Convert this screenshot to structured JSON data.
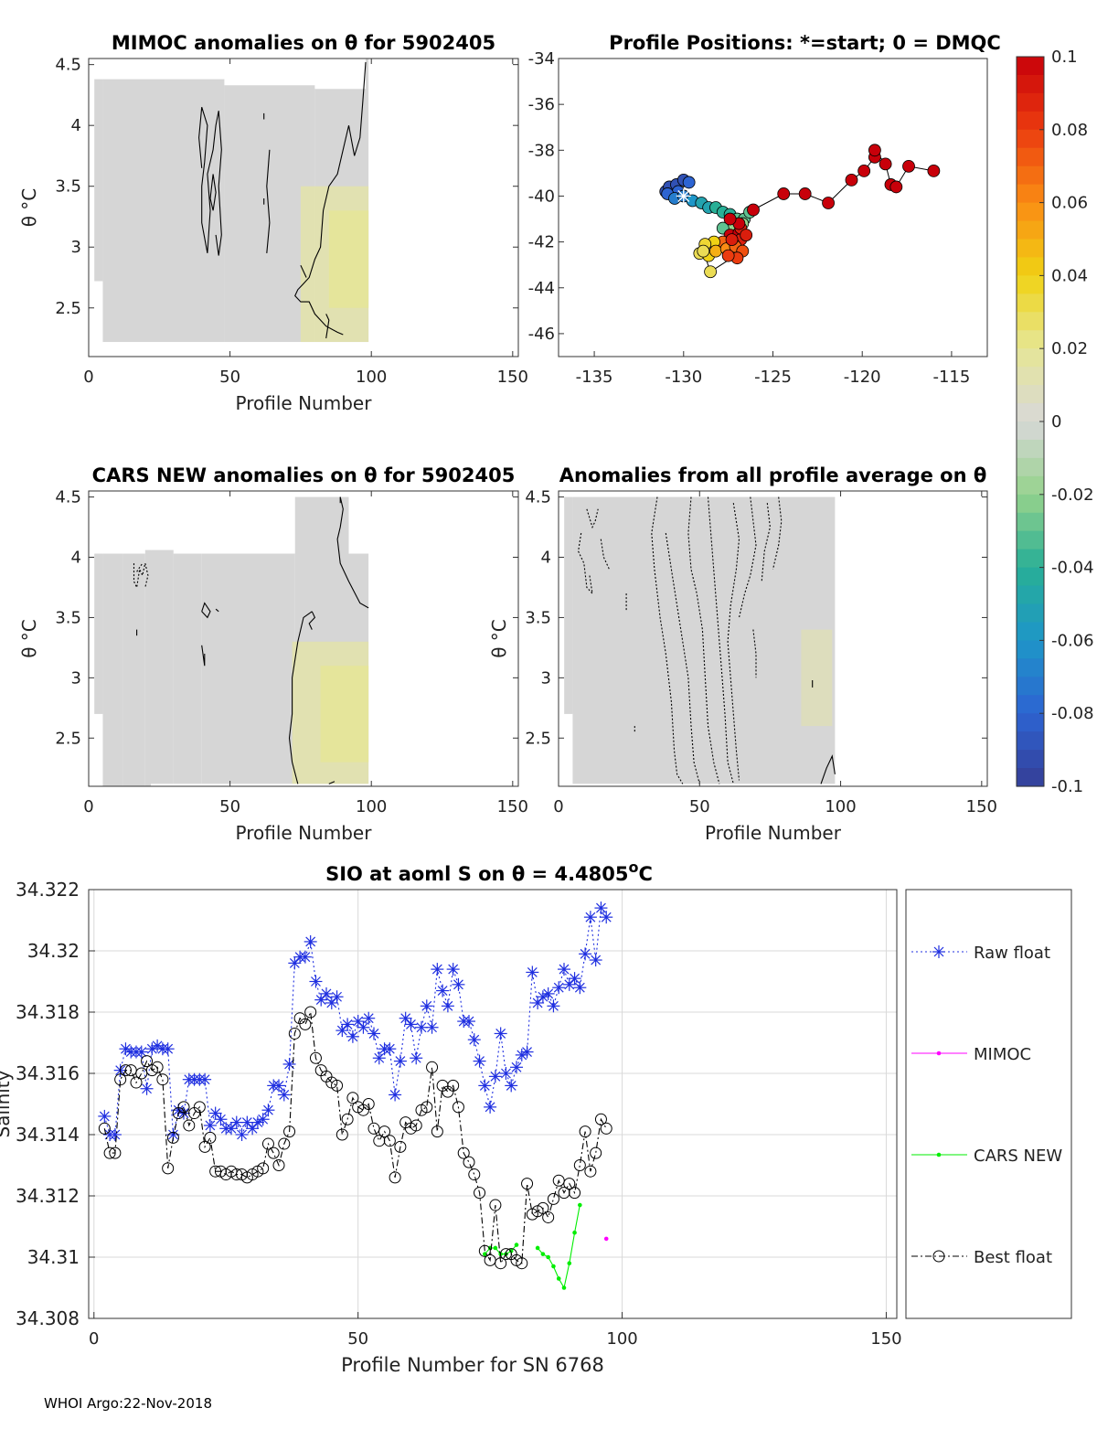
{
  "footer": "WHOI Argo:22-Nov-2018",
  "colors": {
    "raw": "#1f2fe0",
    "mimoc": "#ff00ff",
    "cars": "#00ee00",
    "best": "#000000",
    "grid": "#d9d9d9",
    "field": "#d6d6d6"
  },
  "chart_data": [
    {
      "type": "heatmap",
      "title": "MIMOC anomalies on θ  for 5902405",
      "xlabel": "Profile Number",
      "ylabel": "θ °C",
      "xlim": [
        0,
        152
      ],
      "ylim": [
        2.1,
        4.55
      ],
      "xticks": [
        0,
        50,
        100,
        150
      ],
      "yticks": [
        2.5,
        3,
        3.5,
        4,
        4.5
      ]
    },
    {
      "type": "scatter",
      "title": "Profile Positions: *=start; 0 = DMQC",
      "xlim": [
        -137,
        -113
      ],
      "ylim": [
        -47,
        -34
      ],
      "xticks": [
        -135,
        -130,
        -125,
        -120,
        -115
      ],
      "yticks": [
        -34,
        -36,
        -38,
        -40,
        -42,
        -44,
        -46
      ],
      "points": [
        [
          -131.0,
          -39.8,
          -0.09
        ],
        [
          -130.8,
          -39.6,
          -0.09
        ],
        [
          -130.4,
          -39.5,
          -0.09
        ],
        [
          -130.0,
          -39.3,
          -0.09
        ],
        [
          -129.7,
          -39.4,
          -0.08
        ],
        [
          -130.3,
          -39.8,
          -0.08
        ],
        [
          -130.9,
          -39.9,
          -0.08
        ],
        [
          -130.5,
          -40.1,
          -0.07
        ],
        [
          -130.0,
          -40.0,
          -0.07
        ],
        [
          -129.5,
          -40.2,
          -0.06
        ],
        [
          -129.0,
          -40.3,
          -0.05
        ],
        [
          -128.6,
          -40.5,
          -0.05
        ],
        [
          -128.2,
          -40.5,
          -0.04
        ],
        [
          -127.8,
          -40.7,
          -0.04
        ],
        [
          -127.4,
          -40.8,
          -0.04
        ],
        [
          -127.0,
          -41.0,
          -0.03
        ],
        [
          -126.6,
          -41.0,
          -0.03
        ],
        [
          -126.3,
          -40.7,
          -0.03
        ],
        [
          -126.7,
          -41.2,
          -0.02
        ],
        [
          -127.2,
          -41.3,
          -0.02
        ],
        [
          -127.8,
          -41.4,
          -0.03
        ],
        [
          -127.4,
          -41.7,
          0.1
        ],
        [
          -126.9,
          -41.6,
          0.1
        ],
        [
          -126.8,
          -41.9,
          0.09
        ],
        [
          -127.2,
          -42.1,
          0.08
        ],
        [
          -127.8,
          -42.0,
          0.07
        ],
        [
          -128.3,
          -42.0,
          0.04
        ],
        [
          -128.8,
          -42.1,
          0.035
        ],
        [
          -129.1,
          -42.5,
          0.03
        ],
        [
          -128.6,
          -42.6,
          0.04
        ],
        [
          -128.2,
          -42.4,
          0.05
        ],
        [
          -127.6,
          -42.3,
          0.06
        ],
        [
          -127.1,
          -42.2,
          0.07
        ],
        [
          -126.7,
          -42.4,
          0.075
        ],
        [
          -127.0,
          -42.7,
          0.08
        ],
        [
          -127.5,
          -42.6,
          0.08
        ],
        [
          -127.3,
          -41.9,
          0.09
        ],
        [
          -126.8,
          -41.4,
          0.09
        ],
        [
          -126.5,
          -41.7,
          0.09
        ],
        [
          -126.9,
          -41.2,
          0.1
        ],
        [
          -127.4,
          -41.0,
          0.1
        ],
        [
          -126.1,
          -40.6,
          0.1
        ],
        [
          -124.4,
          -39.9,
          0.1
        ],
        [
          -123.2,
          -39.9,
          0.1
        ],
        [
          -121.9,
          -40.3,
          0.1
        ],
        [
          -120.6,
          -39.3,
          0.1
        ],
        [
          -119.9,
          -38.9,
          0.1
        ],
        [
          -119.3,
          -38.3,
          0.1
        ],
        [
          -119.3,
          -38.0,
          0.1
        ],
        [
          -118.7,
          -38.6,
          0.1
        ],
        [
          -118.4,
          -39.5,
          0.1
        ],
        [
          -118.1,
          -39.6,
          0.1
        ],
        [
          -117.4,
          -38.7,
          0.1
        ],
        [
          -116.0,
          -38.9,
          0.1
        ],
        [
          -128.5,
          -43.3,
          0.03
        ],
        [
          -128.9,
          -42.4,
          0.03
        ]
      ],
      "start": [
        -130.0,
        -40.0
      ]
    },
    {
      "type": "heatmap",
      "title": "CARS NEW anomalies on θ for 5902405",
      "xlabel": "Profile Number",
      "ylabel": "θ °C",
      "xlim": [
        0,
        152
      ],
      "ylim": [
        2.1,
        4.55
      ],
      "xticks": [
        0,
        50,
        100,
        150
      ],
      "yticks": [
        2.5,
        3,
        3.5,
        4,
        4.5
      ]
    },
    {
      "type": "heatmap",
      "title": "Anomalies from all profile average on θ",
      "xlabel": "Profile Number",
      "ylabel": "θ °C",
      "xlim": [
        0,
        152
      ],
      "ylim": [
        2.1,
        4.55
      ],
      "xticks": [
        0,
        50,
        100,
        150
      ],
      "yticks": [
        2.5,
        3,
        3.5,
        4,
        4.5
      ]
    },
    {
      "type": "line",
      "title": "SIO at aoml S on θ = 4.4805",
      "title_sup": "o",
      "title_unit": "C",
      "xlabel": "Profile Number for SN 6768",
      "ylabel": "Salinity",
      "xlim": [
        -1,
        152
      ],
      "ylim": [
        34.308,
        34.322
      ],
      "xticks": [
        0,
        50,
        100,
        150
      ],
      "yticks": [
        "34.308",
        "34.31",
        "34.312",
        "34.314",
        "34.316",
        "34.318",
        "34.32",
        "34.322"
      ],
      "legend": [
        "Raw float",
        "MIMOC",
        "CARS NEW",
        "Best float"
      ],
      "legend_position": "outside-right",
      "series": [
        {
          "name": "Raw float",
          "x": [
            2,
            3,
            4,
            5,
            6,
            7,
            8,
            9,
            10,
            11,
            12,
            13,
            14,
            15,
            16,
            17,
            18,
            19,
            20,
            21,
            22,
            23,
            24,
            25,
            26,
            27,
            28,
            29,
            30,
            31,
            32,
            33,
            34,
            35,
            36,
            37,
            38,
            39,
            40,
            41,
            42,
            43,
            44,
            45,
            46,
            47,
            48,
            49,
            50,
            51,
            52,
            53,
            54,
            55,
            56,
            57,
            58,
            59,
            60,
            61,
            62,
            63,
            64,
            65,
            66,
            67,
            68,
            69,
            70,
            71,
            72,
            73,
            74,
            75,
            76,
            77,
            78,
            79,
            80,
            81,
            82,
            83,
            84,
            85,
            86,
            87,
            88,
            89,
            90,
            91,
            92,
            93,
            94,
            95,
            96,
            97
          ],
          "y": [
            34.3146,
            34.314,
            34.314,
            34.3161,
            34.3168,
            34.3167,
            34.3167,
            34.3167,
            34.3155,
            34.3168,
            34.3169,
            34.3168,
            34.3168,
            34.314,
            34.3148,
            34.3147,
            34.3158,
            34.3158,
            34.3158,
            34.3158,
            34.3143,
            34.3147,
            34.3145,
            34.3142,
            34.3142,
            34.3144,
            34.314,
            34.3144,
            34.3142,
            34.3144,
            34.3145,
            34.3148,
            34.3156,
            34.3156,
            34.3153,
            34.3163,
            34.3196,
            34.3198,
            34.3198,
            34.3203,
            34.319,
            34.3184,
            34.3186,
            34.3183,
            34.3185,
            34.3174,
            34.3176,
            34.3172,
            34.3177,
            34.3175,
            34.3178,
            34.3173,
            34.3165,
            34.3168,
            34.3168,
            34.3153,
            34.3164,
            34.3178,
            34.3176,
            34.3165,
            34.3175,
            34.3182,
            34.3175,
            34.3194,
            34.3187,
            34.3182,
            34.3194,
            34.3189,
            34.3177,
            34.3177,
            34.3171,
            34.3164,
            34.3156,
            34.3149,
            34.3159,
            34.3173,
            34.316,
            34.3156,
            34.3162,
            34.3166,
            34.3167,
            34.3193,
            34.3183,
            34.3185,
            34.3186,
            34.3182,
            34.3188,
            34.3194,
            34.3189,
            34.3191,
            34.3188,
            34.3199,
            34.3211,
            34.3197,
            34.3214,
            34.3211
          ]
        },
        {
          "name": "MIMOC",
          "x": [
            97
          ],
          "y": [
            34.3106
          ]
        },
        {
          "name": "CARS NEW",
          "x": [
            74,
            75,
            76,
            77,
            78,
            79,
            80,
            81,
            84,
            85,
            86,
            87,
            88,
            89,
            90,
            91,
            92
          ],
          "y": [
            34.3101,
            34.3103,
            34.3103,
            34.3101,
            34.3101,
            34.3102,
            34.3104,
            null,
            34.3103,
            34.3101,
            34.31,
            34.3097,
            34.3093,
            34.309,
            34.3098,
            34.3108,
            34.3117
          ]
        },
        {
          "name": "Best float",
          "x": [
            2,
            3,
            4,
            5,
            6,
            7,
            8,
            9,
            10,
            11,
            12,
            13,
            14,
            15,
            16,
            17,
            18,
            19,
            20,
            21,
            22,
            23,
            24,
            25,
            26,
            27,
            28,
            29,
            30,
            31,
            32,
            33,
            34,
            35,
            36,
            37,
            38,
            39,
            40,
            41,
            42,
            43,
            44,
            45,
            46,
            47,
            48,
            49,
            50,
            51,
            52,
            53,
            54,
            55,
            56,
            57,
            58,
            59,
            60,
            61,
            62,
            63,
            64,
            65,
            66,
            67,
            68,
            69,
            70,
            71,
            72,
            73,
            74,
            75,
            76,
            77,
            78,
            79,
            80,
            81,
            82,
            83,
            84,
            85,
            86,
            87,
            88,
            89,
            90,
            91,
            92,
            93,
            94,
            95,
            96,
            97
          ],
          "y": [
            34.3142,
            34.3134,
            34.3134,
            34.3158,
            34.3161,
            34.3161,
            34.3157,
            34.316,
            34.3164,
            34.3161,
            34.3162,
            34.3158,
            34.3129,
            34.3139,
            34.3147,
            34.3149,
            34.3143,
            34.3147,
            34.3149,
            34.3136,
            34.3139,
            34.3128,
            34.3128,
            34.3127,
            34.3128,
            34.3127,
            34.3127,
            34.3126,
            34.3127,
            34.3128,
            34.3129,
            34.3137,
            34.3134,
            34.313,
            34.3137,
            34.3141,
            34.3173,
            34.3178,
            34.3176,
            34.318,
            34.3165,
            34.3161,
            34.3159,
            34.3157,
            34.3156,
            34.314,
            34.3145,
            34.3152,
            34.3149,
            34.3148,
            34.315,
            34.3142,
            34.3138,
            34.3141,
            34.3138,
            34.3126,
            34.3136,
            34.3144,
            34.3142,
            34.3143,
            34.3148,
            34.3149,
            34.3162,
            34.3141,
            34.3156,
            34.3154,
            34.3156,
            34.3149,
            34.3134,
            34.3131,
            34.3127,
            34.3121,
            34.3102,
            34.3099,
            34.3117,
            34.3098,
            34.3101,
            34.3101,
            34.3099,
            34.3098,
            34.3124,
            34.3114,
            34.3115,
            34.3116,
            34.3113,
            34.3119,
            34.3125,
            34.3121,
            34.3124,
            34.3121,
            34.313,
            34.3141,
            34.3128,
            34.3134,
            34.3145,
            34.3142
          ]
        }
      ]
    },
    {
      "type": "colorbar",
      "limits": [
        -0.1,
        0.1
      ],
      "tick_labels": [
        "0.1",
        "0.08",
        "0.06",
        "0.04",
        "0.02",
        "0",
        "-0.02",
        "-0.04",
        "-0.06",
        "-0.08",
        "-0.1"
      ]
    }
  ]
}
